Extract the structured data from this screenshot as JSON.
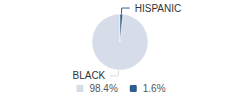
{
  "chart_data": {
    "type": "pie",
    "categories": [
      "BLACK",
      "HISPANIC"
    ],
    "values": [
      98.4,
      1.6
    ],
    "value_labels": [
      "98.4%",
      "1.6%"
    ],
    "colors": [
      "#d6dde8",
      "#2d5f8a"
    ],
    "legend": "bottom"
  }
}
